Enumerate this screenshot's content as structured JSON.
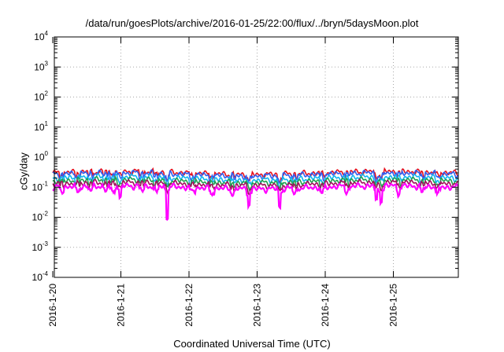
{
  "chart_data": {
    "type": "line",
    "title": "/data/run/goesPlots/archive/2016-01-25/22:00/flux/../bryn/5daysMoon.plot",
    "xlabel": "Coordinated Universal Time (UTC)",
    "ylabel": "cGy/day",
    "y_scale": "log",
    "ylim": [
      0.0001,
      10000
    ],
    "xlim": [
      "2016-01-20T00:00",
      "2016-01-25T22:00"
    ],
    "grid": true,
    "ytick_labels": [
      {
        "base": "10",
        "exp": "-4",
        "value": 0.0001
      },
      {
        "base": "10",
        "exp": "-3",
        "value": 0.001
      },
      {
        "base": "10",
        "exp": "-2",
        "value": 0.01
      },
      {
        "base": "10",
        "exp": "-1",
        "value": 0.1
      },
      {
        "base": "10",
        "exp": "0",
        "value": 1
      },
      {
        "base": "10",
        "exp": "1",
        "value": 10
      },
      {
        "base": "10",
        "exp": "2",
        "value": 100
      },
      {
        "base": "10",
        "exp": "3",
        "value": 1000
      },
      {
        "base": "10",
        "exp": "4",
        "value": 10000
      }
    ],
    "xtick_labels": [
      "2016-1-20",
      "2016-1-21",
      "2016-1-22",
      "2016-1-23",
      "2016-1-24",
      "2016-1-25"
    ],
    "series": [
      {
        "color": "#e8101c",
        "level": 0.3
      },
      {
        "color": "#2f5ff2",
        "level": 0.27
      },
      {
        "color": "#10b6f0",
        "level": 0.2
      },
      {
        "color": "#20a050",
        "level": 0.16
      },
      {
        "color": "#a0105a",
        "level": 0.13
      },
      {
        "color": "#ff00ff",
        "level": 0.1
      }
    ],
    "dips": [
      {
        "day": 0.13,
        "value": 0.07
      },
      {
        "day": 0.37,
        "value": 0.065
      },
      {
        "day": 0.56,
        "value": 0.07
      },
      {
        "day": 0.78,
        "value": 0.07
      },
      {
        "day": 0.88,
        "value": 0.06
      },
      {
        "day": 0.99,
        "value": 0.04
      },
      {
        "day": 1.31,
        "value": 0.07
      },
      {
        "day": 1.52,
        "value": 0.06
      },
      {
        "day": 1.68,
        "value": 0.01
      },
      {
        "day": 2.05,
        "value": 0.07
      },
      {
        "day": 2.33,
        "value": 0.06
      },
      {
        "day": 2.64,
        "value": 0.07
      },
      {
        "day": 2.88,
        "value": 0.03
      },
      {
        "day": 3.33,
        "value": 0.025
      },
      {
        "day": 3.55,
        "value": 0.07
      },
      {
        "day": 3.95,
        "value": 0.06
      },
      {
        "day": 4.32,
        "value": 0.07
      },
      {
        "day": 4.75,
        "value": 0.03
      },
      {
        "day": 4.82,
        "value": 0.03
      },
      {
        "day": 5.08,
        "value": 0.06
      },
      {
        "day": 5.42,
        "value": 0.06
      },
      {
        "day": 5.65,
        "value": 0.05
      }
    ]
  }
}
